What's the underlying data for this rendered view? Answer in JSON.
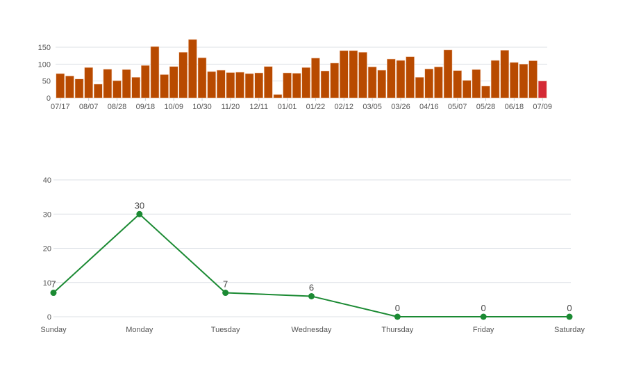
{
  "chart_data": [
    {
      "type": "bar",
      "title": "",
      "xlabel": "",
      "ylabel": "",
      "ylim": [
        0,
        175
      ],
      "yticks": [
        0,
        50,
        100,
        150
      ],
      "grid": true,
      "colors": {
        "default": "#b84a00",
        "highlight": "#d42a35"
      },
      "highlight_last": true,
      "xtick_labels": [
        "07/17",
        "08/07",
        "08/28",
        "09/18",
        "10/09",
        "10/30",
        "11/20",
        "12/11",
        "01/01",
        "01/22",
        "02/12",
        "03/05",
        "03/26",
        "04/16",
        "05/07",
        "05/28",
        "06/18",
        "07/09"
      ],
      "values": [
        72,
        65,
        56,
        90,
        41,
        85,
        51,
        84,
        61,
        96,
        152,
        69,
        93,
        135,
        173,
        119,
        78,
        82,
        75,
        76,
        72,
        74,
        93,
        10,
        74,
        73,
        90,
        118,
        80,
        103,
        140,
        140,
        135,
        92,
        82,
        115,
        111,
        122,
        61,
        86,
        92,
        142,
        81,
        52,
        84,
        35,
        111,
        141,
        105,
        100,
        110,
        50
      ]
    },
    {
      "type": "line",
      "title": "",
      "xlabel": "",
      "ylabel": "",
      "ylim": [
        0,
        40
      ],
      "yticks": [
        0,
        10,
        20,
        30,
        40
      ],
      "grid": true,
      "color": "#1b8a33",
      "categories": [
        "Sunday",
        "Monday",
        "Tuesday",
        "Wednesday",
        "Thursday",
        "Friday",
        "Saturday"
      ],
      "values": [
        7,
        30,
        7,
        6,
        0,
        0,
        0
      ],
      "data_labels": [
        "7",
        "30",
        "7",
        "6",
        "0",
        "0",
        "0"
      ]
    }
  ]
}
